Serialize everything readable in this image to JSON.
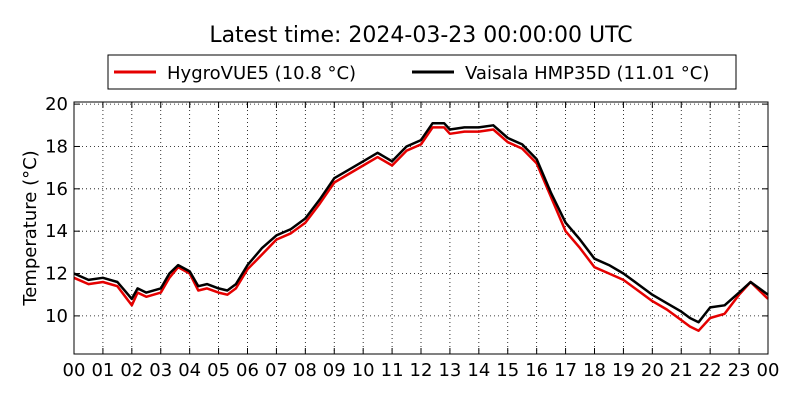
{
  "chart_data": {
    "type": "line",
    "title": "Latest time: 2024-03-23 00:00:00 UTC",
    "xlabel": "",
    "ylabel": "Temperature (°C)",
    "xlim": [
      0,
      24
    ],
    "ylim": [
      8.2,
      20.1
    ],
    "x_ticks": [
      "00",
      "01",
      "02",
      "03",
      "04",
      "05",
      "06",
      "07",
      "08",
      "09",
      "10",
      "11",
      "12",
      "13",
      "14",
      "15",
      "16",
      "17",
      "18",
      "19",
      "20",
      "21",
      "22",
      "23",
      "00"
    ],
    "y_ticks": [
      "10",
      "12",
      "14",
      "16",
      "18",
      "20"
    ],
    "y_tick_values": [
      10,
      12,
      14,
      16,
      18,
      20
    ],
    "grid": true,
    "legend_position": "top",
    "x": [
      0,
      0.5,
      1,
      1.5,
      2,
      2.2,
      2.5,
      3,
      3.3,
      3.6,
      4,
      4.3,
      4.6,
      5,
      5.3,
      5.6,
      6,
      6.5,
      7,
      7.5,
      8,
      8.5,
      9,
      9.5,
      10,
      10.5,
      11,
      11.5,
      12,
      12.4,
      12.8,
      13,
      13.5,
      14,
      14.5,
      15,
      15.5,
      16,
      16.5,
      17,
      17.5,
      18,
      18.5,
      19,
      19.5,
      20,
      20.5,
      21,
      21.3,
      21.6,
      22,
      22.5,
      23,
      23.4,
      24
    ],
    "series": [
      {
        "name": "HygroVUE5 (10.8 °C)",
        "color": "#e50000",
        "values": [
          11.8,
          11.5,
          11.6,
          11.4,
          10.5,
          11.1,
          10.9,
          11.1,
          11.8,
          12.3,
          12.0,
          11.2,
          11.3,
          11.1,
          11.0,
          11.3,
          12.2,
          12.9,
          13.6,
          13.9,
          14.4,
          15.3,
          16.3,
          16.7,
          17.1,
          17.5,
          17.1,
          17.8,
          18.1,
          18.9,
          18.9,
          18.6,
          18.7,
          18.7,
          18.8,
          18.2,
          17.9,
          17.2,
          15.6,
          14.0,
          13.2,
          12.3,
          12.0,
          11.7,
          11.2,
          10.7,
          10.3,
          9.8,
          9.5,
          9.3,
          9.9,
          10.1,
          11.0,
          11.6,
          10.8
        ]
      },
      {
        "name": "Vaisala HMP35D (11.01 °C)",
        "color": "#000000",
        "values": [
          12.0,
          11.7,
          11.8,
          11.6,
          10.8,
          11.3,
          11.1,
          11.3,
          12.0,
          12.4,
          12.1,
          11.4,
          11.5,
          11.3,
          11.2,
          11.5,
          12.4,
          13.2,
          13.8,
          14.1,
          14.6,
          15.5,
          16.5,
          16.9,
          17.3,
          17.7,
          17.3,
          18.0,
          18.3,
          19.1,
          19.1,
          18.8,
          18.9,
          18.9,
          19.0,
          18.4,
          18.1,
          17.4,
          15.8,
          14.4,
          13.6,
          12.7,
          12.4,
          12.0,
          11.5,
          11.0,
          10.6,
          10.2,
          9.9,
          9.7,
          10.4,
          10.5,
          11.1,
          11.6,
          11.0
        ]
      }
    ]
  }
}
